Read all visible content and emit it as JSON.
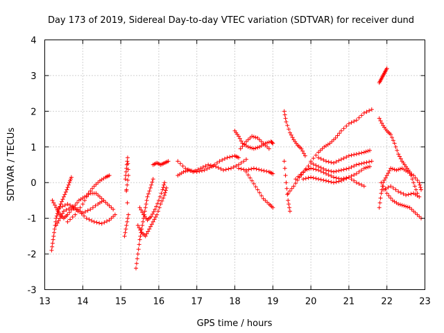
{
  "chart_data": {
    "type": "scatter",
    "title": "Day 173 of 2019, Sidereal Day-to-day VTEC variation (SDTVAR) for receiver dund",
    "xlabel": "GPS time / hours",
    "ylabel": "SDTVAR / TECUs",
    "xlim": [
      13,
      23
    ],
    "ylim": [
      -3,
      4
    ],
    "grid": true,
    "x_ticks": [
      "13",
      "14",
      "15",
      "16",
      "17",
      "18",
      "19",
      "20",
      "21",
      "22",
      "23"
    ],
    "y_ticks": [
      "-3",
      "-2",
      "-1",
      "0",
      "1",
      "2",
      "3",
      "4"
    ],
    "marker": "+",
    "color": "#ff0000",
    "series": [
      {
        "name": "s1",
        "points": [
          [
            13.18,
            -1.9
          ],
          [
            13.22,
            -1.6
          ],
          [
            13.26,
            -1.3
          ],
          [
            13.3,
            -1.0
          ],
          [
            13.35,
            -0.8
          ],
          [
            13.42,
            -0.6
          ],
          [
            13.5,
            -0.4
          ],
          [
            13.58,
            -0.2
          ],
          [
            13.65,
            0.0
          ],
          [
            13.7,
            0.15
          ]
        ]
      },
      {
        "name": "s2",
        "points": [
          [
            13.2,
            -0.5
          ],
          [
            13.3,
            -0.7
          ],
          [
            13.4,
            -0.9
          ],
          [
            13.5,
            -1.0
          ],
          [
            13.6,
            -0.9
          ],
          [
            13.75,
            -0.7
          ],
          [
            13.9,
            -0.5
          ],
          [
            14.05,
            -0.4
          ],
          [
            14.2,
            -0.3
          ],
          [
            14.35,
            -0.3
          ],
          [
            14.5,
            -0.45
          ],
          [
            14.65,
            -0.6
          ],
          [
            14.8,
            -0.75
          ]
        ]
      },
      {
        "name": "s3",
        "points": [
          [
            13.3,
            -1.2
          ],
          [
            13.4,
            -1.0
          ],
          [
            13.5,
            -0.8
          ],
          [
            13.7,
            -0.7
          ],
          [
            13.9,
            -0.8
          ],
          [
            14.1,
            -1.0
          ],
          [
            14.3,
            -1.1
          ],
          [
            14.5,
            -1.15
          ],
          [
            14.7,
            -1.05
          ],
          [
            14.85,
            -0.9
          ]
        ]
      },
      {
        "name": "s4",
        "points": [
          [
            13.6,
            -1.1
          ],
          [
            13.8,
            -0.9
          ],
          [
            14.0,
            -0.6
          ],
          [
            14.15,
            -0.3
          ],
          [
            14.3,
            -0.1
          ],
          [
            14.45,
            0.05
          ],
          [
            14.6,
            0.15
          ],
          [
            14.7,
            0.2
          ]
        ]
      },
      {
        "name": "s5",
        "points": [
          [
            13.4,
            -0.7
          ],
          [
            13.6,
            -0.6
          ],
          [
            13.8,
            -0.7
          ],
          [
            14.0,
            -0.85
          ],
          [
            14.2,
            -0.75
          ],
          [
            14.4,
            -0.6
          ],
          [
            14.55,
            -0.5
          ]
        ]
      },
      {
        "name": "s6",
        "points": [
          [
            15.1,
            -1.5
          ],
          [
            15.15,
            -1.2
          ],
          [
            15.2,
            -0.9
          ],
          [
            15.12,
            0.1
          ],
          [
            15.15,
            0.4
          ],
          [
            15.18,
            0.7
          ],
          [
            15.2,
            0.2
          ],
          [
            15.15,
            -0.2
          ]
        ]
      },
      {
        "name": "s7",
        "points": [
          [
            15.4,
            -2.4
          ],
          [
            15.45,
            -2.0
          ],
          [
            15.5,
            -1.6
          ],
          [
            15.55,
            -1.3
          ],
          [
            15.6,
            -1.0
          ],
          [
            15.65,
            -0.7
          ],
          [
            15.7,
            -0.4
          ],
          [
            15.78,
            -0.15
          ],
          [
            15.85,
            0.1
          ]
        ]
      },
      {
        "name": "s8",
        "points": [
          [
            15.45,
            -1.2
          ],
          [
            15.55,
            -1.4
          ],
          [
            15.65,
            -1.5
          ],
          [
            15.75,
            -1.3
          ],
          [
            15.85,
            -1.1
          ],
          [
            15.95,
            -0.9
          ],
          [
            16.05,
            -0.6
          ],
          [
            16.15,
            -0.35
          ],
          [
            16.2,
            -0.15
          ]
        ]
      },
      {
        "name": "s9",
        "points": [
          [
            15.5,
            -0.7
          ],
          [
            15.6,
            -0.9
          ],
          [
            15.7,
            -1.05
          ],
          [
            15.8,
            -0.95
          ],
          [
            15.9,
            -0.75
          ],
          [
            16.0,
            -0.5
          ],
          [
            16.1,
            -0.2
          ],
          [
            16.15,
            0.0
          ]
        ]
      },
      {
        "name": "s10",
        "points": [
          [
            15.85,
            0.5
          ],
          [
            15.95,
            0.55
          ],
          [
            16.05,
            0.5
          ],
          [
            16.15,
            0.55
          ],
          [
            16.25,
            0.6
          ]
        ]
      },
      {
        "name": "s11",
        "points": [
          [
            16.5,
            0.2
          ],
          [
            16.65,
            0.3
          ],
          [
            16.8,
            0.35
          ],
          [
            17.0,
            0.3
          ],
          [
            17.2,
            0.35
          ],
          [
            17.4,
            0.45
          ],
          [
            17.6,
            0.6
          ],
          [
            17.8,
            0.7
          ],
          [
            18.0,
            0.75
          ],
          [
            18.1,
            0.7
          ]
        ]
      },
      {
        "name": "s12",
        "points": [
          [
            16.5,
            0.6
          ],
          [
            16.7,
            0.4
          ],
          [
            16.9,
            0.3
          ],
          [
            17.1,
            0.4
          ],
          [
            17.3,
            0.5
          ],
          [
            17.5,
            0.45
          ],
          [
            17.7,
            0.35
          ],
          [
            17.9,
            0.4
          ],
          [
            18.1,
            0.5
          ],
          [
            18.3,
            0.65
          ]
        ]
      },
      {
        "name": "s13",
        "points": [
          [
            18.0,
            1.45
          ],
          [
            18.1,
            1.3
          ],
          [
            18.2,
            1.1
          ],
          [
            18.35,
            1.0
          ],
          [
            18.5,
            0.95
          ],
          [
            18.65,
            1.0
          ],
          [
            18.8,
            1.1
          ],
          [
            18.95,
            1.15
          ],
          [
            19.0,
            1.1
          ]
        ]
      },
      {
        "name": "s14",
        "points": [
          [
            18.15,
            0.95
          ],
          [
            18.3,
            1.15
          ],
          [
            18.45,
            1.3
          ],
          [
            18.6,
            1.25
          ],
          [
            18.75,
            1.1
          ],
          [
            18.9,
            0.95
          ]
        ]
      },
      {
        "name": "s15",
        "points": [
          [
            18.1,
            0.4
          ],
          [
            18.3,
            0.35
          ],
          [
            18.5,
            0.4
          ],
          [
            18.7,
            0.35
          ],
          [
            18.9,
            0.3
          ],
          [
            19.0,
            0.25
          ]
        ]
      },
      {
        "name": "s16",
        "points": [
          [
            18.3,
            0.3
          ],
          [
            18.45,
            0.05
          ],
          [
            18.6,
            -0.2
          ],
          [
            18.75,
            -0.45
          ],
          [
            18.9,
            -0.6
          ],
          [
            19.0,
            -0.7
          ]
        ]
      },
      {
        "name": "s17",
        "points": [
          [
            19.3,
            2.0
          ],
          [
            19.35,
            1.7
          ],
          [
            19.45,
            1.4
          ],
          [
            19.55,
            1.2
          ],
          [
            19.65,
            1.05
          ],
          [
            19.75,
            0.95
          ],
          [
            19.85,
            0.75
          ]
        ]
      },
      {
        "name": "s18",
        "points": [
          [
            19.3,
            0.6
          ],
          [
            19.35,
            0.0
          ],
          [
            19.4,
            -0.5
          ],
          [
            19.45,
            -0.8
          ]
        ]
      },
      {
        "name": "s19",
        "points": [
          [
            19.4,
            -0.3
          ],
          [
            19.55,
            -0.1
          ],
          [
            19.7,
            0.15
          ],
          [
            19.85,
            0.35
          ],
          [
            20.0,
            0.4
          ],
          [
            20.2,
            0.35
          ],
          [
            20.4,
            0.25
          ],
          [
            20.6,
            0.15
          ],
          [
            20.8,
            0.1
          ],
          [
            21.0,
            0.15
          ],
          [
            21.2,
            0.25
          ],
          [
            21.4,
            0.4
          ],
          [
            21.55,
            0.45
          ]
        ]
      },
      {
        "name": "s20",
        "points": [
          [
            19.6,
            0.1
          ],
          [
            19.8,
            0.3
          ],
          [
            20.0,
            0.55
          ],
          [
            20.2,
            0.45
          ],
          [
            20.4,
            0.35
          ],
          [
            20.6,
            0.3
          ],
          [
            20.8,
            0.35
          ],
          [
            21.0,
            0.4
          ],
          [
            21.2,
            0.5
          ],
          [
            21.4,
            0.55
          ],
          [
            21.6,
            0.6
          ]
        ]
      },
      {
        "name": "s21",
        "points": [
          [
            19.8,
            0.1
          ],
          [
            20.0,
            0.15
          ],
          [
            20.2,
            0.1
          ],
          [
            20.4,
            0.05
          ],
          [
            20.6,
            0.0
          ],
          [
            20.8,
            0.05
          ],
          [
            21.0,
            0.15
          ],
          [
            21.2,
            0.0
          ],
          [
            21.4,
            -0.1
          ]
        ]
      },
      {
        "name": "s22",
        "points": [
          [
            20.0,
            0.6
          ],
          [
            20.2,
            0.85
          ],
          [
            20.35,
            1.0
          ],
          [
            20.5,
            1.1
          ],
          [
            20.65,
            1.25
          ],
          [
            20.8,
            1.45
          ],
          [
            21.0,
            1.65
          ],
          [
            21.2,
            1.75
          ],
          [
            21.4,
            1.95
          ],
          [
            21.6,
            2.05
          ]
        ]
      },
      {
        "name": "s23",
        "points": [
          [
            20.2,
            0.7
          ],
          [
            20.4,
            0.6
          ],
          [
            20.6,
            0.55
          ],
          [
            20.8,
            0.65
          ],
          [
            21.0,
            0.75
          ],
          [
            21.2,
            0.8
          ],
          [
            21.4,
            0.85
          ],
          [
            21.55,
            0.9
          ]
        ]
      },
      {
        "name": "s24",
        "points": [
          [
            21.8,
            2.8
          ],
          [
            21.85,
            2.9
          ],
          [
            21.9,
            3.0
          ],
          [
            21.95,
            3.1
          ],
          [
            22.0,
            3.2
          ]
        ]
      },
      {
        "name": "s25",
        "points": [
          [
            21.8,
            1.8
          ],
          [
            21.9,
            1.6
          ],
          [
            22.0,
            1.45
          ],
          [
            22.1,
            1.35
          ],
          [
            22.2,
            1.1
          ],
          [
            22.3,
            0.8
          ],
          [
            22.4,
            0.6
          ],
          [
            22.5,
            0.45
          ],
          [
            22.6,
            0.3
          ],
          [
            22.7,
            0.0
          ],
          [
            22.8,
            -0.3
          ]
        ]
      },
      {
        "name": "s26",
        "points": [
          [
            21.8,
            -0.7
          ],
          [
            21.85,
            -0.3
          ],
          [
            21.9,
            0.0
          ],
          [
            22.0,
            0.2
          ],
          [
            22.1,
            0.4
          ],
          [
            22.25,
            0.35
          ],
          [
            22.4,
            0.4
          ],
          [
            22.55,
            0.3
          ],
          [
            22.7,
            0.2
          ],
          [
            22.85,
            0.0
          ],
          [
            22.9,
            -0.2
          ]
        ]
      },
      {
        "name": "s27",
        "points": [
          [
            21.85,
            0.0
          ],
          [
            22.0,
            -0.3
          ],
          [
            22.15,
            -0.5
          ],
          [
            22.3,
            -0.6
          ],
          [
            22.45,
            -0.65
          ],
          [
            22.6,
            -0.7
          ],
          [
            22.75,
            -0.85
          ],
          [
            22.9,
            -1.0
          ]
        ]
      },
      {
        "name": "s28",
        "points": [
          [
            21.9,
            -0.2
          ],
          [
            22.1,
            -0.1
          ],
          [
            22.3,
            -0.25
          ],
          [
            22.5,
            -0.35
          ],
          [
            22.7,
            -0.3
          ],
          [
            22.85,
            -0.4
          ]
        ]
      }
    ]
  }
}
